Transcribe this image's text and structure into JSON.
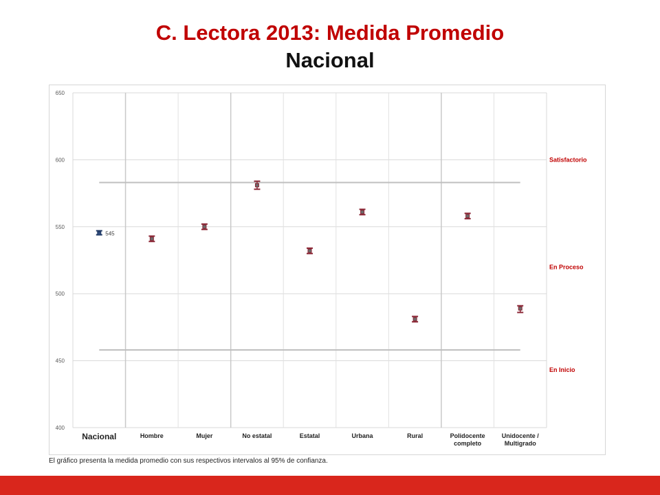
{
  "header": {
    "title": "C. Lectora 2013: Medida Promedio",
    "subtitle": "Nacional"
  },
  "caption": "El gráfico presenta la medida promedio con sus respectivos intervalos al 95% de confianza.",
  "chart_data": {
    "type": "scatter",
    "categories": [
      "Nacional",
      "Hombre",
      "Mujer",
      "No estatal",
      "Estatal",
      "Urbana",
      "Rural",
      "Polidocente completo",
      "Unidocente / Multigrado"
    ],
    "values": [
      545,
      541,
      550,
      581,
      532,
      561,
      481,
      558,
      489
    ],
    "ci_low": [
      544,
      539,
      548,
      578,
      530,
      559,
      479,
      556,
      486
    ],
    "ci_high": [
      547,
      543,
      552,
      584,
      534,
      563,
      483,
      560,
      491
    ],
    "data_labels": [
      {
        "category": "Nacional",
        "text": "545"
      }
    ],
    "ylim": [
      400,
      650
    ],
    "yticks": [
      400,
      450,
      500,
      550,
      600,
      650
    ],
    "reference_lines": [
      583,
      458
    ],
    "levels": [
      "Satisfactorio",
      "En Proceso",
      "En Inicio"
    ],
    "grid": true,
    "colors": {
      "nacional": "#1f3864",
      "groups": "#8b2635",
      "level_text": "#c00000",
      "ref_line": "#bfbfbf",
      "grid": "#d9d9d9",
      "group_separator": "#c8c8c8"
    }
  }
}
